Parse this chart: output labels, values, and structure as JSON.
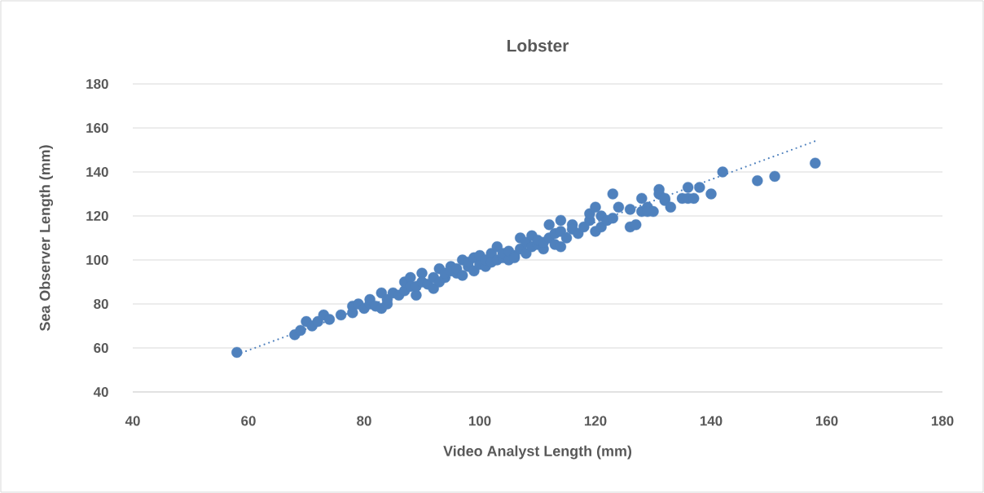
{
  "chart_data": {
    "type": "scatter",
    "title": "Lobster",
    "xlabel": "Video Analyst Length (mm)",
    "ylabel": "Sea Observer Length (mm)",
    "xlim": [
      40,
      180
    ],
    "ylim": [
      40,
      180
    ],
    "xticks": [
      40,
      60,
      80,
      100,
      120,
      140,
      160,
      180
    ],
    "yticks": [
      40,
      60,
      80,
      100,
      120,
      140,
      160,
      180
    ],
    "grid": "y",
    "marker": "circle",
    "series": [
      {
        "color": "#4f81bd",
        "x": [
          58,
          68,
          69,
          70,
          71,
          72,
          73,
          74,
          76,
          78,
          78,
          79,
          80,
          81,
          81,
          82,
          83,
          83,
          84,
          84,
          85,
          86,
          87,
          87,
          88,
          88,
          89,
          89,
          90,
          90,
          91,
          92,
          92,
          93,
          93,
          94,
          94,
          95,
          95,
          96,
          96,
          97,
          97,
          98,
          98,
          99,
          99,
          100,
          100,
          101,
          101,
          102,
          102,
          103,
          103,
          104,
          104,
          105,
          105,
          106,
          106,
          107,
          107,
          108,
          108,
          109,
          109,
          110,
          110,
          111,
          111,
          112,
          112,
          113,
          113,
          114,
          114,
          114,
          115,
          116,
          116,
          117,
          118,
          119,
          119,
          120,
          120,
          121,
          121,
          122,
          123,
          123,
          124,
          126,
          126,
          127,
          128,
          128,
          129,
          129,
          130,
          131,
          131,
          132,
          132,
          133,
          135,
          136,
          136,
          137,
          138,
          140,
          142,
          148,
          151,
          158
        ],
        "values": [
          58,
          66,
          68,
          72,
          70,
          72,
          75,
          73,
          75,
          76,
          79,
          80,
          78,
          80,
          82,
          79,
          78,
          85,
          80,
          82,
          85,
          84,
          86,
          90,
          92,
          88,
          84,
          88,
          94,
          90,
          89,
          87,
          92,
          96,
          90,
          92,
          94,
          97,
          95,
          94,
          96,
          100,
          93,
          97,
          99,
          95,
          101,
          98,
          102,
          97,
          100,
          103,
          99,
          106,
          100,
          101,
          103,
          100,
          104,
          102,
          101,
          105,
          110,
          103,
          108,
          111,
          106,
          107,
          109,
          105,
          108,
          116,
          110,
          112,
          107,
          118,
          106,
          113,
          110,
          116,
          114,
          112,
          115,
          118,
          121,
          113,
          124,
          115,
          120,
          118,
          130,
          119,
          124,
          115,
          123,
          116,
          128,
          122,
          124,
          122,
          122,
          132,
          130,
          127,
          128,
          124,
          128,
          133,
          128,
          128,
          133,
          130,
          140,
          136,
          138,
          144
        ]
      },
      {
        "color": "#4f81bd",
        "type": "line",
        "line_style": "dotted",
        "marker": "none",
        "x": [
          58,
          158
        ],
        "values": [
          57,
          154
        ]
      }
    ]
  }
}
